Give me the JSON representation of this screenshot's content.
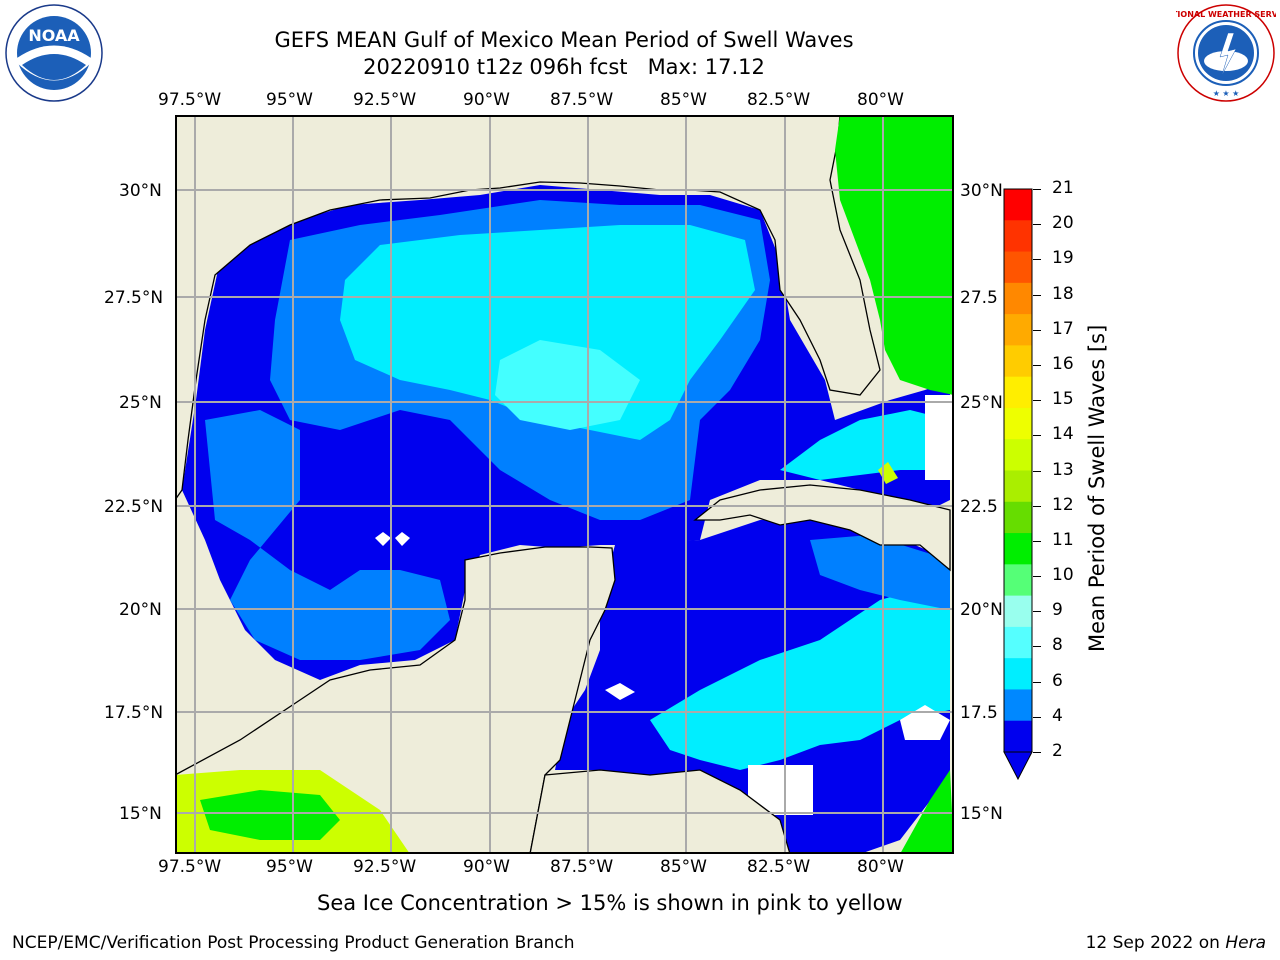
{
  "title_line1": "GEFS MEAN Gulf of Mexico Mean Period of Swell Waves",
  "title_line2": "20220910 t12z 096h fcst   Max: 17.12",
  "lon_ticks": [
    "97.5°W",
    "95°W",
    "92.5°W",
    "90°W",
    "87.5°W",
    "85°W",
    "82.5°W",
    "80°W"
  ],
  "lat_ticks_left": [
    "30°N",
    "27.5°N",
    "25°N",
    "22.5°N",
    "20°N",
    "17.5°N",
    "15°N"
  ],
  "lat_ticks_right": [
    "30°N",
    "27.5",
    "25°N",
    "22.5",
    "20°N",
    "17.5",
    "15°N"
  ],
  "colorbar": {
    "label": "Mean Period of Swell Waves [s]",
    "ticks": [
      "21",
      "20",
      "19",
      "18",
      "17",
      "16",
      "15",
      "14",
      "13",
      "12",
      "11",
      "10",
      "9",
      "8",
      "6",
      "4",
      "2"
    ],
    "colors": [
      "#ff0000",
      "#ff3300",
      "#ff5500",
      "#ff8800",
      "#ffaa00",
      "#ffcc00",
      "#ffee00",
      "#eeff00",
      "#ccff00",
      "#aaee00",
      "#66dd00",
      "#00ee00",
      "#55ff77",
      "#99ffee",
      "#55ffff",
      "#00eeff",
      "#0088ff",
      "#0000ee"
    ]
  },
  "colors": {
    "land": "#eeedda",
    "ocean_dark": "#0000ee",
    "ocean_mid": "#0080ff",
    "ocean_light": "#00eeff",
    "ocean_pale": "#44ffff",
    "green": "#00ee00",
    "yellowgreen": "#ccff00"
  },
  "logo_left": "NOAA",
  "logo_left_ring": "NATIONAL OCEANIC AND ATMOSPHERIC ADMINISTRATION · U.S. DEPARTMENT OF COMMERCE",
  "logo_right_ring": "NATIONAL WEATHER SERVICE",
  "sea_ice_note": "Sea Ice Concentration > 15% is shown in pink to yellow",
  "footer_left": "NCEP/EMC/Verification Post Processing Product Generation Branch",
  "footer_right_date": "12 Sep 2022 on ",
  "footer_right_host": "Hera"
}
